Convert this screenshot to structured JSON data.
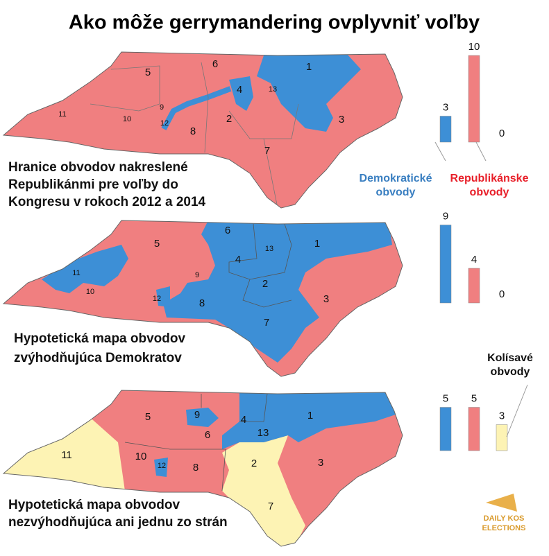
{
  "title": "Ako môže gerrymandering ovplyvniť voľby",
  "logo": [
    "DAILY KOS",
    "ELECTIONS"
  ],
  "chart_data": [
    {
      "type": "bar",
      "values": [
        3,
        10,
        0
      ],
      "colors": [
        "#3d8fd6",
        "#f07f80",
        "#f07f80"
      ],
      "categories": [
        [
          "Demokratické",
          "obvody"
        ],
        [
          "Republikánske",
          "obvody"
        ],
        null
      ],
      "caption": [
        "Hranice obvodov nakreslené",
        "Republikánmi pre voľby do",
        "Kongresu v rokoch 2012 a 2014"
      ],
      "district_labels": [
        "1",
        "2",
        "3",
        "4",
        "5",
        "6",
        "7",
        "8",
        "9",
        "10",
        "11",
        "12",
        "13"
      ]
    },
    {
      "type": "bar",
      "values": [
        9,
        4,
        0
      ],
      "colors": [
        "#3d8fd6",
        "#f07f80",
        "#f07f80"
      ],
      "categories": [
        null,
        null,
        null
      ],
      "caption": [
        "Hypotetická mapa obvodov",
        "zvýhodňujúca Demokratov"
      ],
      "district_labels": [
        "1",
        "2",
        "3",
        "4",
        "5",
        "6",
        "7",
        "8",
        "9",
        "10",
        "11",
        "12",
        "13"
      ]
    },
    {
      "type": "bar",
      "values": [
        5,
        5,
        3
      ],
      "colors": [
        "#3d8fd6",
        "#f07f80",
        "#fdf3b4"
      ],
      "categories": [
        null,
        null,
        [
          "Kolísavé",
          "obvody"
        ]
      ],
      "caption": [
        "Hypotetická mapa obvodov",
        "nezvýhodňujúca ani jednu zo strán"
      ],
      "district_labels": [
        "1",
        "2",
        "3",
        "4",
        "5",
        "6",
        "7",
        "8",
        "9",
        "10",
        "11",
        "12",
        "13"
      ]
    }
  ]
}
